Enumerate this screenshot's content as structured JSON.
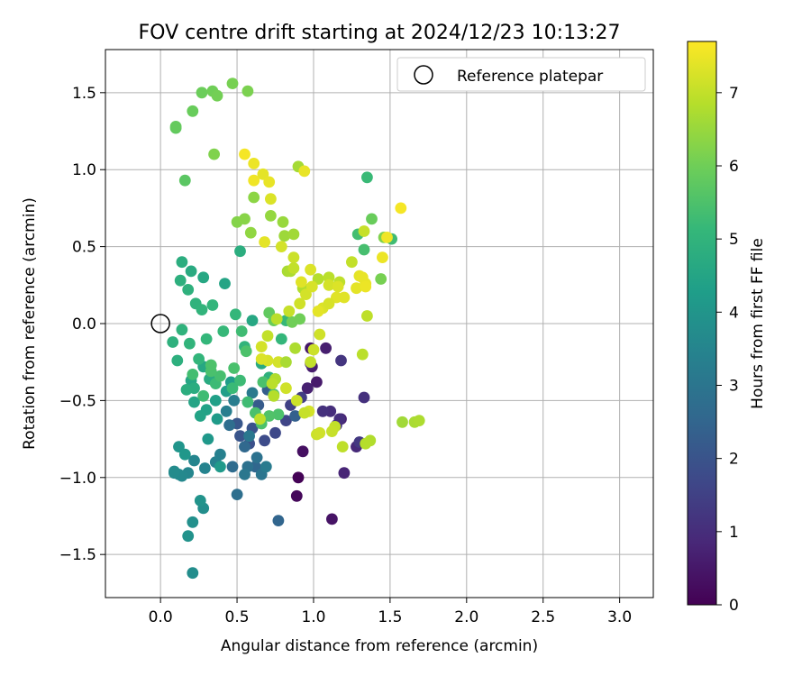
{
  "chart_data": {
    "type": "scatter",
    "title": "FOV centre drift starting at 2024/12/23 10:13:27",
    "xlabel": "Angular distance from reference (arcmin)",
    "ylabel": "Rotation from reference (arcmin)",
    "xlim": [
      -0.36,
      3.22
    ],
    "ylim": [
      -1.78,
      1.78
    ],
    "xticks": [
      0.0,
      0.5,
      1.0,
      1.5,
      2.0,
      2.5,
      3.0
    ],
    "xtick_labels": [
      "0.0",
      "0.5",
      "1.0",
      "1.5",
      "2.0",
      "2.5",
      "3.0"
    ],
    "yticks": [
      -1.5,
      -1.0,
      -0.5,
      0.0,
      0.5,
      1.0,
      1.5
    ],
    "ytick_labels": [
      "−1.5",
      "−1.0",
      "−0.5",
      "0.0",
      "0.5",
      "1.0",
      "1.5"
    ],
    "grid": true,
    "legend": {
      "placement": "top-right",
      "entries": [
        "Reference platepar"
      ]
    },
    "reference_point": {
      "x": 0.0,
      "y": 0.0,
      "label": "Reference platepar"
    },
    "colorbar": {
      "label": "Hours from first FF file",
      "colormap": "viridis",
      "range": [
        0,
        7.7
      ],
      "ticks": [
        0,
        1,
        2,
        3,
        4,
        5,
        6,
        7
      ],
      "tick_labels": [
        "0",
        "1",
        "2",
        "3",
        "4",
        "5",
        "6",
        "7"
      ]
    },
    "colormap_stops": [
      "#440154",
      "#482878",
      "#3e4989",
      "#31688e",
      "#26828e",
      "#1f9e89",
      "#35b779",
      "#6ece58",
      "#b5de2b",
      "#fde725"
    ],
    "series": [
      {
        "x": [
          0.9,
          0.89,
          0.93,
          1.12,
          1.02,
          0.99,
          1.08,
          1.2,
          1.18,
          1.28,
          1.33,
          1.3,
          0.98,
          1.18,
          1.11,
          0.96,
          0.98,
          1.06,
          1.15,
          1.17
        ],
        "y": [
          -1.0,
          -1.12,
          -0.83,
          -1.27,
          -0.38,
          -0.28,
          -0.16,
          -0.97,
          -0.62,
          -0.8,
          -0.48,
          -0.77,
          -0.16,
          -0.24,
          -0.57,
          -0.42,
          -0.26,
          -0.57,
          -0.66,
          -0.62
        ],
        "hours": [
          0.05,
          0.15,
          0.3,
          0.4,
          0.55,
          0.6,
          0.65,
          0.8,
          0.7,
          0.9,
          1.1,
          1.3,
          0.5,
          1.2,
          1.0,
          0.7,
          0.85,
          1.1,
          1.15,
          1.05
        ]
      },
      {
        "x": [
          0.92,
          0.85,
          0.82,
          0.75,
          0.68,
          0.58,
          0.6,
          0.52,
          0.5,
          0.64,
          0.7,
          0.88,
          0.77,
          0.62,
          0.55,
          0.47,
          0.45
        ],
        "y": [
          -0.48,
          -0.53,
          -0.63,
          -0.71,
          -0.76,
          -0.78,
          -0.68,
          -0.73,
          -0.65,
          -0.53,
          -0.43,
          -0.6,
          -1.28,
          -0.93,
          -0.8,
          -0.93,
          -0.66
        ],
        "hours": [
          1.4,
          1.5,
          1.6,
          1.7,
          1.8,
          1.9,
          2.0,
          2.05,
          2.1,
          2.2,
          2.3,
          2.35,
          2.5,
          2.55,
          2.6,
          2.7,
          2.75
        ]
      },
      {
        "x": [
          0.5,
          0.57,
          0.63,
          0.66,
          0.55,
          0.58,
          0.6,
          0.69,
          0.48,
          0.43,
          0.39,
          0.36,
          0.29,
          0.22,
          0.18,
          0.14,
          0.12,
          0.09,
          0.09
        ],
        "y": [
          -1.11,
          -0.93,
          -0.87,
          -0.98,
          -0.98,
          -0.73,
          -0.45,
          -0.93,
          -0.5,
          -0.57,
          -0.85,
          -0.9,
          -0.94,
          -0.89,
          -0.97,
          -0.99,
          -0.98,
          -0.97,
          -0.96
        ],
        "hours": [
          2.8,
          2.85,
          2.9,
          3.0,
          3.05,
          3.1,
          3.15,
          3.2,
          3.25,
          3.3,
          3.35,
          3.4,
          3.45,
          3.5,
          3.55,
          3.6,
          3.65,
          3.68,
          3.7
        ]
      },
      {
        "x": [
          0.21,
          0.28,
          0.21,
          0.18,
          0.26,
          0.12,
          0.16,
          0.31,
          0.39,
          0.37,
          0.46,
          0.43,
          0.36,
          0.3,
          0.26,
          0.22,
          0.2,
          0.28,
          0.33,
          0.32,
          0.22,
          0.17,
          0.11,
          0.08,
          0.14,
          0.19,
          0.25,
          0.3,
          0.41,
          0.42,
          0.28,
          0.2,
          0.14,
          0.13,
          0.18,
          0.23,
          0.27,
          0.34,
          0.49,
          0.52,
          0.6,
          0.55,
          0.66,
          0.71,
          0.75,
          0.79,
          0.82
        ],
        "y": [
          -1.62,
          -1.2,
          -1.29,
          -1.38,
          -1.15,
          -0.8,
          -0.85,
          -0.75,
          -0.93,
          -0.62,
          -0.38,
          -0.44,
          -0.5,
          -0.56,
          -0.6,
          -0.51,
          -0.37,
          -0.28,
          -0.27,
          -0.36,
          -0.42,
          -0.43,
          -0.24,
          -0.12,
          -0.04,
          -0.13,
          -0.23,
          -0.1,
          -0.05,
          0.26,
          0.3,
          0.34,
          0.4,
          0.28,
          0.22,
          0.13,
          0.09,
          0.12,
          0.06,
          0.47,
          0.02,
          -0.15,
          -0.26,
          -0.35,
          -0.36,
          -0.1,
          0.02
        ],
        "hours": [
          3.75,
          3.8,
          3.85,
          3.9,
          3.95,
          4.0,
          4.05,
          4.1,
          4.15,
          4.2,
          4.25,
          4.3,
          4.35,
          4.4,
          4.45,
          4.5,
          4.55,
          4.6,
          4.65,
          4.7,
          4.75,
          4.8,
          4.85,
          4.9,
          4.95,
          5.0,
          5.05,
          5.1,
          5.15,
          4.5,
          4.6,
          4.7,
          4.8,
          4.85,
          4.9,
          4.95,
          5.0,
          5.05,
          5.1,
          4.8,
          4.6,
          5.0,
          4.7,
          4.9,
          5.05,
          5.1,
          5.15
        ]
      },
      {
        "x": [
          1.35,
          1.51,
          1.29,
          1.33,
          0.53,
          0.67,
          0.77,
          0.62,
          0.66,
          0.71,
          0.74,
          0.57,
          0.52,
          0.47,
          0.36,
          0.28,
          0.21,
          0.39,
          0.33,
          0.33,
          0.48,
          0.56,
          0.16,
          0.1,
          0.1
        ],
        "y": [
          0.95,
          0.55,
          0.58,
          0.48,
          -0.05,
          -0.38,
          -0.59,
          -0.58,
          -0.65,
          -0.6,
          -0.46,
          -0.51,
          -0.37,
          -0.42,
          -0.39,
          -0.47,
          -0.33,
          -0.34,
          -0.31,
          -0.27,
          -0.29,
          -0.18,
          0.93,
          1.27,
          1.28
        ],
        "hours": [
          5.2,
          5.3,
          5.35,
          5.4,
          5.3,
          5.45,
          5.5,
          5.45,
          5.5,
          5.55,
          5.45,
          5.3,
          5.25,
          5.2,
          5.25,
          5.3,
          5.35,
          5.4,
          5.45,
          5.5,
          5.45,
          5.5,
          5.7,
          5.8,
          5.85
        ]
      },
      {
        "x": [
          0.21,
          0.27,
          0.34,
          0.37,
          0.47,
          0.57,
          0.35,
          0.5,
          0.55,
          0.61,
          0.59,
          0.72,
          0.8,
          0.81,
          0.87,
          0.9,
          0.83,
          0.85,
          0.93,
          1.03,
          1.1,
          1.17,
          1.25,
          1.33,
          1.38,
          1.44,
          1.46,
          0.71,
          0.74,
          0.86,
          0.91
        ],
        "y": [
          1.38,
          1.5,
          1.51,
          1.48,
          1.56,
          1.51,
          1.1,
          0.66,
          0.68,
          0.82,
          0.59,
          0.7,
          0.66,
          0.57,
          0.58,
          1.02,
          0.34,
          0.34,
          0.23,
          0.29,
          0.3,
          0.27,
          0.4,
          0.6,
          0.68,
          0.29,
          0.56,
          0.07,
          0.02,
          0.01,
          0.03
        ],
        "hours": [
          5.9,
          5.95,
          6.0,
          6.05,
          6.1,
          6.15,
          6.2,
          6.25,
          6.3,
          6.35,
          6.4,
          6.45,
          6.5,
          6.55,
          6.6,
          6.65,
          6.7,
          6.75,
          6.8,
          6.85,
          6.9,
          6.95,
          7.0,
          7.05,
          5.9,
          6.1,
          6.2,
          5.8,
          5.9,
          6.0,
          6.0
        ]
      },
      {
        "x": [
          0.55,
          0.61,
          0.67,
          0.71,
          0.61,
          0.72,
          0.79,
          0.87,
          0.87,
          0.84,
          0.91,
          0.95,
          0.99,
          1.06,
          1.15,
          1.3,
          1.34,
          1.45,
          1.57,
          1.48,
          1.58,
          1.66,
          1.69,
          1.37,
          1.34,
          1.32,
          1.19,
          1.14,
          1.12,
          1.02,
          1.04,
          0.97,
          0.94,
          0.89,
          0.82,
          0.77,
          0.7,
          0.66,
          0.66,
          0.75,
          0.74,
          0.73,
          0.65,
          0.82,
          0.88,
          0.98,
          1.0,
          1.04,
          1.1,
          1.16,
          1.2,
          1.28,
          1.32,
          1.34,
          1.35,
          1.1,
          0.98,
          0.92,
          1.03,
          0.94,
          0.76,
          0.7,
          0.68
        ],
        "y": [
          1.1,
          1.04,
          0.97,
          0.92,
          0.93,
          0.81,
          0.5,
          0.43,
          0.36,
          0.08,
          0.13,
          0.19,
          0.24,
          0.1,
          0.17,
          0.31,
          0.26,
          0.43,
          0.75,
          0.56,
          -0.64,
          -0.64,
          -0.63,
          -0.76,
          -0.78,
          -0.2,
          -0.8,
          -0.67,
          -0.7,
          -0.72,
          -0.71,
          -0.57,
          -0.58,
          -0.5,
          -0.42,
          -0.25,
          -0.24,
          -0.23,
          -0.15,
          -0.36,
          -0.47,
          -0.39,
          -0.62,
          -0.25,
          -0.16,
          -0.25,
          -0.17,
          -0.07,
          0.25,
          0.24,
          0.17,
          0.23,
          0.3,
          0.24,
          0.05,
          0.13,
          0.35,
          0.27,
          0.08,
          0.99,
          0.03,
          -0.08,
          0.53
        ],
        "hours": [
          7.6,
          7.5,
          7.4,
          7.45,
          7.55,
          7.3,
          7.2,
          7.1,
          7.0,
          7.05,
          7.15,
          7.2,
          7.25,
          7.3,
          7.35,
          7.4,
          7.45,
          7.5,
          7.6,
          7.55,
          6.6,
          6.7,
          6.75,
          6.8,
          6.85,
          6.9,
          6.95,
          7.0,
          7.05,
          7.1,
          7.15,
          7.2,
          7.05,
          7.1,
          7.15,
          7.2,
          7.25,
          7.3,
          7.2,
          6.8,
          6.85,
          6.9,
          6.95,
          6.7,
          6.75,
          7.0,
          7.1,
          7.15,
          7.2,
          7.3,
          7.35,
          7.4,
          7.45,
          7.5,
          6.95,
          7.25,
          7.3,
          7.35,
          7.4,
          7.45,
          6.9,
          7.0,
          7.4
        ]
      }
    ]
  }
}
